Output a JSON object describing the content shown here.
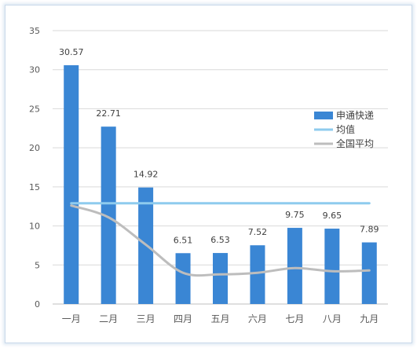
{
  "chart_data": {
    "type": "bar",
    "categories": [
      "一月",
      "二月",
      "三月",
      "四月",
      "五月",
      "六月",
      "七月",
      "八月",
      "九月"
    ],
    "series": [
      {
        "name": "申通快递",
        "type": "bar",
        "values": [
          30.57,
          22.71,
          14.92,
          6.51,
          6.53,
          7.52,
          9.75,
          9.65,
          7.89
        ],
        "color": "#3a86d4"
      },
      {
        "name": "均值",
        "type": "line",
        "values": [
          12.9,
          12.9,
          12.9,
          12.9,
          12.9,
          12.9,
          12.9,
          12.9,
          12.9
        ],
        "color": "#8ecbee"
      },
      {
        "name": "全国平均",
        "type": "line",
        "values": [
          12.6,
          11.1,
          7.6,
          4.0,
          3.8,
          4.0,
          4.6,
          4.2,
          4.3
        ],
        "color": "#bdbdbd"
      }
    ],
    "ylim": [
      0,
      35
    ],
    "yticks": [
      0,
      5,
      10,
      15,
      20,
      25,
      30,
      35
    ],
    "grid": true,
    "legend_position": "right"
  }
}
